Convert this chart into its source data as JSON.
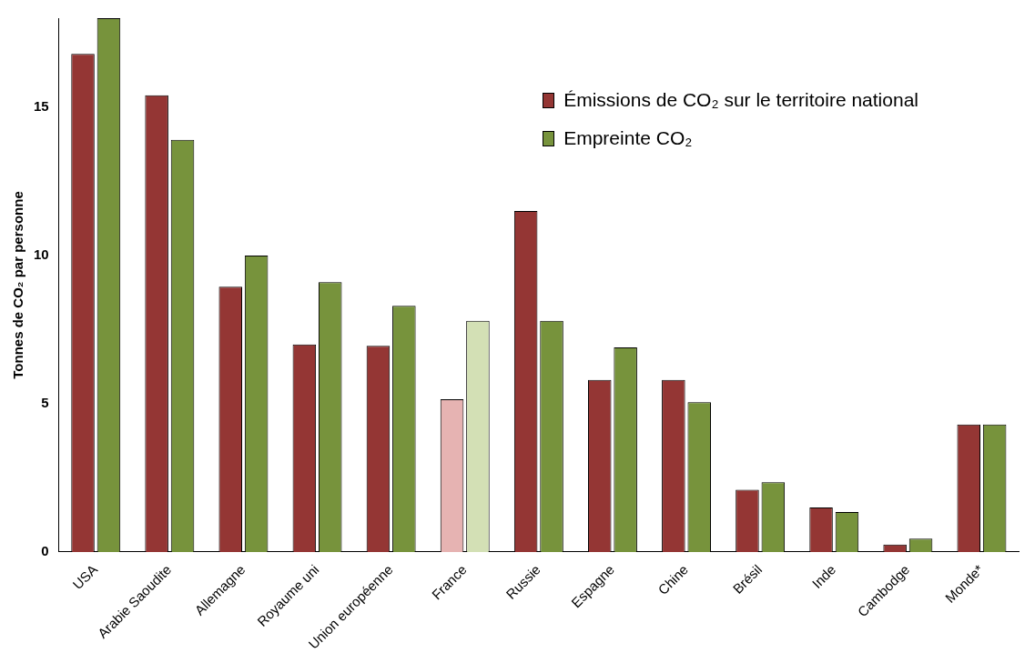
{
  "chart_data": {
    "type": "bar",
    "ylabel": "Tonnes de CO₂ par personne",
    "categories": [
      "USA",
      "Arabie Saoudite",
      "Allemagne",
      "Royaume uni",
      "Union européenne",
      "France",
      "Russie",
      "Espagne",
      "Chine",
      "Brésil",
      "Inde",
      "Cambodge",
      "Monde*"
    ],
    "series": [
      {
        "name": "Émissions de CO₂ sur le territoire national",
        "color": "#943634",
        "colors": [
          "#943634",
          "#943634",
          "#943634",
          "#943634",
          "#943634",
          "#e6b3b2",
          "#943634",
          "#943634",
          "#943634",
          "#943634",
          "#943634",
          "#943634",
          "#943634"
        ],
        "values": [
          16.8,
          15.4,
          8.95,
          7.0,
          6.95,
          5.15,
          11.5,
          5.8,
          5.8,
          2.1,
          1.5,
          0.25,
          4.3
        ]
      },
      {
        "name": "Empreinte CO₂",
        "color": "#77933c",
        "colors": [
          "#77933c",
          "#77933c",
          "#77933c",
          "#77933c",
          "#77933c",
          "#d3e0b5",
          "#77933c",
          "#77933c",
          "#77933c",
          "#77933c",
          "#77933c",
          "#77933c",
          "#77933c"
        ],
        "values": [
          18,
          13.9,
          10.0,
          9.1,
          8.3,
          7.8,
          7.8,
          6.9,
          5.05,
          2.35,
          1.35,
          0.45,
          4.3
        ]
      }
    ],
    "ylim": [
      0,
      18
    ],
    "yticks": [
      0,
      5,
      10,
      15
    ],
    "grid": false,
    "legend": "top right"
  }
}
